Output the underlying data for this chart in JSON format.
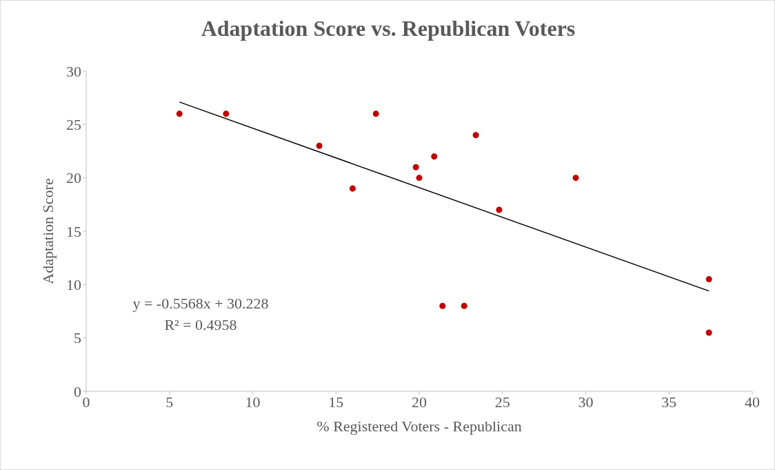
{
  "chart_data": {
    "type": "scatter",
    "title": "Adaptation Score vs. Republican Voters",
    "xlabel": "% Registered Voters - Republican",
    "ylabel": "Adaptation Score",
    "series": [
      {
        "marker": "circle",
        "color": "#c00000",
        "x": [
          5.6,
          8.4,
          14,
          16,
          17.4,
          19.8,
          20,
          20.9,
          21.4,
          22.7,
          23.4,
          24.8,
          29.4,
          37.4,
          37.4
        ],
        "values": [
          26,
          26,
          23,
          19,
          26,
          21,
          20,
          22,
          8,
          8,
          24,
          17,
          20,
          10.5,
          5.5
        ]
      },
      {
        "type": "line",
        "marker": "none",
        "color": "#000000",
        "x": [
          5.6,
          37.4
        ],
        "values": [
          27.1,
          9.4
        ]
      }
    ],
    "xlim": [
      0,
      40
    ],
    "xticks": [
      0,
      5,
      10,
      15,
      20,
      25,
      30,
      35,
      40
    ],
    "ylim": [
      0,
      30
    ],
    "yticks": [
      0,
      5,
      10,
      15,
      20,
      25,
      30
    ],
    "annotations": [
      "y = -0.5568x + 30.228",
      "R² = 0.4958"
    ]
  }
}
